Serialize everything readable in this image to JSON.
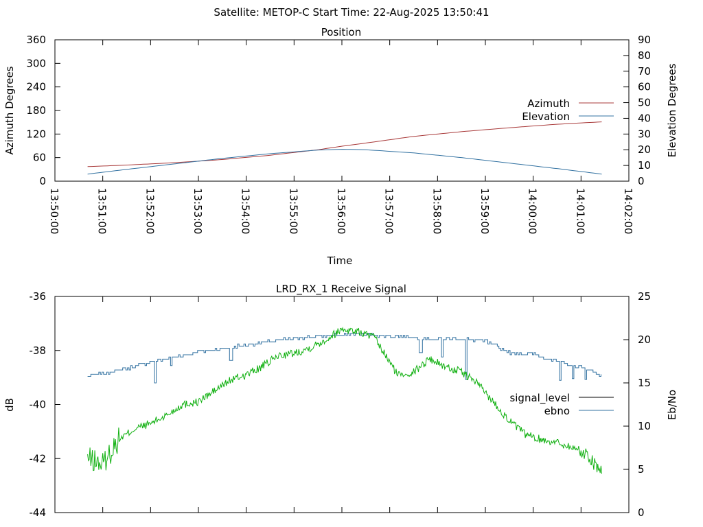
{
  "header": {
    "title": "Satellite: METOP-C    Start Time: 22-Aug-2025 13:50:41"
  },
  "chart_data": [
    {
      "type": "line",
      "title": "Position",
      "xlabel": "Time",
      "ylabel": "Azimuth Degrees",
      "y2label": "Elevation Degrees",
      "ylim": [
        0,
        360
      ],
      "y2lim": [
        0,
        90
      ],
      "yticks": [
        0,
        60,
        120,
        180,
        240,
        300,
        360
      ],
      "y2ticks": [
        0,
        10,
        20,
        30,
        40,
        50,
        60,
        70,
        80,
        90
      ],
      "xlim": [
        "13:50:00",
        "14:02:00"
      ],
      "xticks": [
        "13:50:00",
        "13:51:00",
        "13:52:00",
        "13:53:00",
        "13:54:00",
        "13:55:00",
        "13:56:00",
        "13:57:00",
        "13:58:00",
        "13:59:00",
        "14:00:00",
        "14:01:00",
        "14:02:00"
      ],
      "legend_position": "right",
      "grid": false,
      "series": [
        {
          "name": "Azimuth",
          "axis": "left",
          "color": "#a83838",
          "x": [
            "13:50:41",
            "13:51:30",
            "13:52:30",
            "13:53:30",
            "13:54:30",
            "13:55:30",
            "13:56:00",
            "13:56:30",
            "13:57:30",
            "13:58:30",
            "13:59:30",
            "14:00:30",
            "14:01:26"
          ],
          "y": [
            37,
            41,
            47,
            55,
            66,
            80,
            89,
            97,
            114,
            126,
            136,
            145,
            151
          ]
        },
        {
          "name": "Elevation",
          "axis": "right",
          "color": "#3070a0",
          "x": [
            "13:50:41",
            "13:51:30",
            "13:52:30",
            "13:53:30",
            "13:54:30",
            "13:55:30",
            "13:56:00",
            "13:56:30",
            "13:57:30",
            "13:58:30",
            "13:59:30",
            "14:00:30",
            "14:01:26"
          ],
          "y": [
            4.5,
            7.5,
            11,
            14.5,
            17.5,
            19.8,
            20.3,
            20,
            18,
            15,
            11.5,
            8,
            4.5
          ]
        }
      ]
    },
    {
      "type": "line",
      "title": "LRD_RX_1 Receive Signal",
      "ylabel": "dB",
      "y2label": "Eb/No",
      "ylim": [
        -44,
        -36
      ],
      "y2lim": [
        0,
        25
      ],
      "yticks": [
        -44,
        -42,
        -40,
        -38,
        -36
      ],
      "y2ticks": [
        0,
        5,
        10,
        15,
        20,
        25
      ],
      "legend_position": "right",
      "grid": false,
      "series": [
        {
          "name": "signal_level",
          "axis": "left",
          "color": "#000000",
          "legend_only": true
        },
        {
          "name": "ebno",
          "axis": "right",
          "color": "#3070a0",
          "x": [
            "13:50:41",
            "13:51:00",
            "13:51:30",
            "13:52:00",
            "13:52:30",
            "13:53:00",
            "13:53:30",
            "13:54:00",
            "13:54:30",
            "13:55:00",
            "13:55:30",
            "13:56:00",
            "13:56:30",
            "13:57:00",
            "13:57:30",
            "13:58:00",
            "13:58:30",
            "13:59:00",
            "13:59:30",
            "14:00:00",
            "14:00:30",
            "14:01:00",
            "14:01:26"
          ],
          "y": [
            15.8,
            16.1,
            16.7,
            17.4,
            18.0,
            18.6,
            19.0,
            19.4,
            19.8,
            20.2,
            20.4,
            20.6,
            20.6,
            20.4,
            20.3,
            20.1,
            20.1,
            19.8,
            18.5,
            18.3,
            17.5,
            16.8,
            15.9
          ],
          "dips": [
            {
              "x": "13:52:05",
              "y": 15
            },
            {
              "x": "13:52:25",
              "y": 17
            },
            {
              "x": "13:53:40",
              "y": 17.6
            },
            {
              "x": "13:57:38",
              "y": 18.5
            },
            {
              "x": "13:58:05",
              "y": 18
            },
            {
              "x": "13:58:35",
              "y": 15.4
            },
            {
              "x": "14:00:33",
              "y": 15.3
            },
            {
              "x": "14:00:49",
              "y": 15.5
            },
            {
              "x": "14:01:05",
              "y": 15.4
            }
          ]
        },
        {
          "name": "",
          "axis": "left",
          "color": "#10b010",
          "x": [
            "13:50:41",
            "13:51:00",
            "13:51:20",
            "13:51:40",
            "13:52:00",
            "13:52:20",
            "13:52:40",
            "13:53:00",
            "13:53:20",
            "13:53:40",
            "13:54:00",
            "13:54:20",
            "13:54:40",
            "13:55:00",
            "13:55:20",
            "13:55:40",
            "13:56:00",
            "13:56:20",
            "13:56:40",
            "13:56:55",
            "13:57:10",
            "13:57:30",
            "13:57:50",
            "13:58:10",
            "13:58:30",
            "13:58:50",
            "13:59:10",
            "13:59:30",
            "13:59:50",
            "14:00:10",
            "14:00:30",
            "14:00:50",
            "14:01:10",
            "14:01:26"
          ],
          "y": [
            -42.0,
            -42.2,
            -41.3,
            -40.9,
            -40.7,
            -40.4,
            -40.0,
            -39.9,
            -39.5,
            -39.1,
            -38.9,
            -38.6,
            -38.2,
            -38.1,
            -37.9,
            -37.6,
            -37.2,
            -37.3,
            -37.5,
            -38.2,
            -38.9,
            -38.8,
            -38.3,
            -38.6,
            -38.8,
            -39.2,
            -39.9,
            -40.6,
            -41.1,
            -41.3,
            -41.4,
            -41.6,
            -41.9,
            -42.5
          ],
          "noise": 0.15
        }
      ]
    }
  ]
}
